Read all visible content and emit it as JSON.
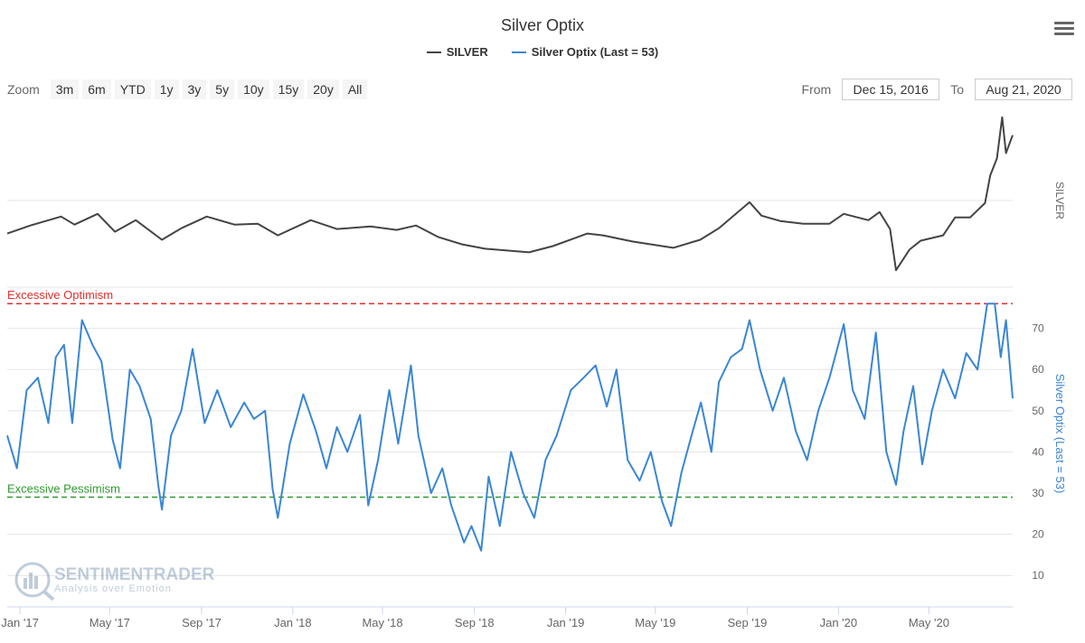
{
  "title": "Silver Optix",
  "legend": [
    {
      "name": "SILVER",
      "color": "#444444"
    },
    {
      "name": "Silver Optix (Last = 53)",
      "color": "#3a86d4"
    }
  ],
  "zoom": {
    "label": "Zoom",
    "buttons": [
      "3m",
      "6m",
      "YTD",
      "1y",
      "3y",
      "5y",
      "10y",
      "15y",
      "20y",
      "All"
    ]
  },
  "range": {
    "from_label": "From",
    "from_value": "Dec 15, 2016",
    "to_label": "To",
    "to_value": "Aug 21, 2020"
  },
  "watermark": {
    "brand": "SENTIMENTRADER",
    "tagline": "Analysis over Emotion"
  },
  "chart_data": {
    "type": "line",
    "x_tick_labels": [
      "Jan '17",
      "May '17",
      "Sep '17",
      "Jan '18",
      "May '18",
      "Sep '18",
      "Jan '19",
      "May '19",
      "Sep '19",
      "Jan '20",
      "May '20"
    ],
    "x_ticks": [
      "2017-01-01",
      "2017-05-01",
      "2017-09-01",
      "2018-01-01",
      "2018-05-01",
      "2018-09-01",
      "2019-01-01",
      "2019-05-01",
      "2019-09-01",
      "2020-01-01",
      "2020-05-01"
    ],
    "xlim": [
      "2016-12-15",
      "2020-08-21"
    ],
    "panels": [
      {
        "series": "SILVER",
        "axis_label": "SILVER",
        "color": "#444444",
        "points": [
          [
            "2016-12-15",
            16.0
          ],
          [
            "2017-01-15",
            16.9
          ],
          [
            "2017-02-25",
            17.9
          ],
          [
            "2017-03-15",
            17.0
          ],
          [
            "2017-04-15",
            18.2
          ],
          [
            "2017-05-08",
            16.2
          ],
          [
            "2017-06-05",
            17.5
          ],
          [
            "2017-07-10",
            15.3
          ],
          [
            "2017-08-05",
            16.6
          ],
          [
            "2017-09-08",
            17.9
          ],
          [
            "2017-10-15",
            17.0
          ],
          [
            "2017-11-15",
            17.1
          ],
          [
            "2017-12-12",
            15.8
          ],
          [
            "2018-01-25",
            17.5
          ],
          [
            "2018-03-01",
            16.5
          ],
          [
            "2018-04-15",
            16.8
          ],
          [
            "2018-05-20",
            16.4
          ],
          [
            "2018-06-15",
            16.9
          ],
          [
            "2018-07-15",
            15.6
          ],
          [
            "2018-08-15",
            14.8
          ],
          [
            "2018-09-15",
            14.3
          ],
          [
            "2018-11-13",
            13.9
          ],
          [
            "2018-12-15",
            14.6
          ],
          [
            "2019-01-30",
            16.0
          ],
          [
            "2019-02-20",
            15.8
          ],
          [
            "2019-04-01",
            15.1
          ],
          [
            "2019-05-25",
            14.4
          ],
          [
            "2019-06-30",
            15.3
          ],
          [
            "2019-07-25",
            16.6
          ],
          [
            "2019-09-04",
            19.5
          ],
          [
            "2019-09-20",
            18.0
          ],
          [
            "2019-10-15",
            17.4
          ],
          [
            "2019-11-15",
            17.1
          ],
          [
            "2019-12-20",
            17.1
          ],
          [
            "2020-01-08",
            18.2
          ],
          [
            "2020-02-10",
            17.5
          ],
          [
            "2020-02-25",
            18.4
          ],
          [
            "2020-03-10",
            16.5
          ],
          [
            "2020-03-18",
            11.9
          ],
          [
            "2020-04-05",
            14.2
          ],
          [
            "2020-04-20",
            15.2
          ],
          [
            "2020-05-20",
            15.8
          ],
          [
            "2020-06-05",
            17.8
          ],
          [
            "2020-06-25",
            17.8
          ],
          [
            "2020-07-15",
            19.4
          ],
          [
            "2020-07-22",
            22.5
          ],
          [
            "2020-07-31",
            24.4
          ],
          [
            "2020-08-07",
            29.0
          ],
          [
            "2020-08-12",
            25.0
          ],
          [
            "2020-08-21",
            27.0
          ]
        ]
      },
      {
        "series": "Silver Optix (Last = 53)",
        "axis_label": "Silver Optix (Last = 53)",
        "color": "#3a86d4",
        "yticks": [
          10,
          20,
          30,
          40,
          50,
          60,
          70
        ],
        "ylim": [
          5,
          80
        ],
        "reference_lines": [
          {
            "label": "Excessive Optimism",
            "value": 76,
            "color": "#e0302c"
          },
          {
            "label": "Excessive Pessimism",
            "value": 29,
            "color": "#2e9a2e"
          }
        ],
        "points": [
          [
            "2016-12-15",
            44
          ],
          [
            "2016-12-28",
            36
          ],
          [
            "2017-01-10",
            55
          ],
          [
            "2017-01-25",
            58
          ],
          [
            "2017-02-08",
            47
          ],
          [
            "2017-02-18",
            63
          ],
          [
            "2017-03-01",
            66
          ],
          [
            "2017-03-12",
            47
          ],
          [
            "2017-03-25",
            72
          ],
          [
            "2017-04-08",
            66
          ],
          [
            "2017-04-20",
            62
          ],
          [
            "2017-05-05",
            43
          ],
          [
            "2017-05-15",
            36
          ],
          [
            "2017-05-28",
            60
          ],
          [
            "2017-06-10",
            56
          ],
          [
            "2017-06-25",
            48
          ],
          [
            "2017-07-05",
            32
          ],
          [
            "2017-07-10",
            26
          ],
          [
            "2017-07-22",
            44
          ],
          [
            "2017-08-05",
            50
          ],
          [
            "2017-08-20",
            65
          ],
          [
            "2017-09-05",
            47
          ],
          [
            "2017-09-22",
            55
          ],
          [
            "2017-10-10",
            46
          ],
          [
            "2017-10-28",
            52
          ],
          [
            "2017-11-10",
            48
          ],
          [
            "2017-11-25",
            50
          ],
          [
            "2017-12-05",
            31
          ],
          [
            "2017-12-12",
            24
          ],
          [
            "2017-12-28",
            42
          ],
          [
            "2018-01-15",
            54
          ],
          [
            "2018-02-01",
            45
          ],
          [
            "2018-02-15",
            36
          ],
          [
            "2018-03-01",
            46
          ],
          [
            "2018-03-15",
            40
          ],
          [
            "2018-04-01",
            49
          ],
          [
            "2018-04-12",
            27
          ],
          [
            "2018-04-25",
            38
          ],
          [
            "2018-05-10",
            55
          ],
          [
            "2018-05-22",
            42
          ],
          [
            "2018-06-08",
            61
          ],
          [
            "2018-06-18",
            44
          ],
          [
            "2018-07-05",
            30
          ],
          [
            "2018-07-20",
            36
          ],
          [
            "2018-08-01",
            27
          ],
          [
            "2018-08-18",
            18
          ],
          [
            "2018-08-28",
            22
          ],
          [
            "2018-09-10",
            16
          ],
          [
            "2018-09-20",
            34
          ],
          [
            "2018-10-05",
            22
          ],
          [
            "2018-10-20",
            40
          ],
          [
            "2018-11-05",
            30
          ],
          [
            "2018-11-20",
            24
          ],
          [
            "2018-12-05",
            38
          ],
          [
            "2018-12-20",
            44
          ],
          [
            "2019-01-08",
            55
          ],
          [
            "2019-01-25",
            58
          ],
          [
            "2019-02-10",
            61
          ],
          [
            "2019-02-25",
            51
          ],
          [
            "2019-03-10",
            60
          ],
          [
            "2019-03-25",
            38
          ],
          [
            "2019-04-10",
            33
          ],
          [
            "2019-04-25",
            40
          ],
          [
            "2019-05-10",
            28
          ],
          [
            "2019-05-22",
            22
          ],
          [
            "2019-06-05",
            35
          ],
          [
            "2019-06-20",
            45
          ],
          [
            "2019-07-01",
            52
          ],
          [
            "2019-07-15",
            40
          ],
          [
            "2019-07-25",
            57
          ],
          [
            "2019-08-10",
            63
          ],
          [
            "2019-08-25",
            65
          ],
          [
            "2019-09-04",
            72
          ],
          [
            "2019-09-18",
            60
          ],
          [
            "2019-10-05",
            50
          ],
          [
            "2019-10-20",
            58
          ],
          [
            "2019-11-05",
            45
          ],
          [
            "2019-11-20",
            38
          ],
          [
            "2019-12-05",
            50
          ],
          [
            "2019-12-20",
            58
          ],
          [
            "2020-01-08",
            71
          ],
          [
            "2020-01-20",
            55
          ],
          [
            "2020-02-05",
            48
          ],
          [
            "2020-02-20",
            69
          ],
          [
            "2020-03-05",
            40
          ],
          [
            "2020-03-18",
            32
          ],
          [
            "2020-03-28",
            45
          ],
          [
            "2020-04-10",
            56
          ],
          [
            "2020-04-22",
            37
          ],
          [
            "2020-05-05",
            50
          ],
          [
            "2020-05-20",
            60
          ],
          [
            "2020-06-05",
            53
          ],
          [
            "2020-06-20",
            64
          ],
          [
            "2020-07-05",
            60
          ],
          [
            "2020-07-18",
            76
          ],
          [
            "2020-07-28",
            76
          ],
          [
            "2020-08-05",
            63
          ],
          [
            "2020-08-12",
            72
          ],
          [
            "2020-08-21",
            53
          ]
        ]
      }
    ]
  }
}
